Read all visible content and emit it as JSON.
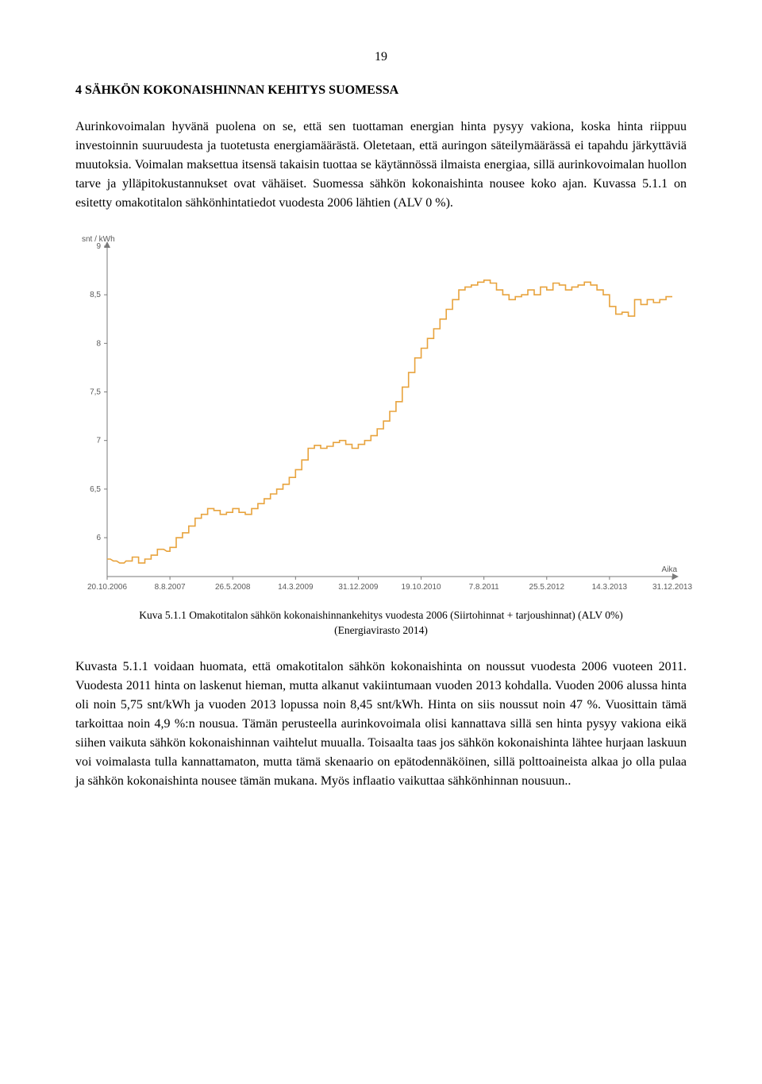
{
  "page_number": "19",
  "heading": "4  SÄHKÖN KOKONAISHINNAN KEHITYS SUOMESSA",
  "paragraph1": "Aurinkovoimalan hyvänä puolena on se, että sen tuottaman energian hinta pysyy vakiona, koska hinta riippuu investoinnin suuruudesta ja tuotetusta energiamäärästä. Oletetaan, että auringon säteilymäärässä ei tapahdu järkyttäviä muutoksia. Voimalan maksettua itsensä takaisin tuottaa se käytännössä ilmaista energiaa, sillä aurinkovoimalan huollon tarve ja ylläpitokustannukset ovat vähäiset. Suomessa sähkön kokonaishinta nousee koko ajan. Kuvassa 5.1.1 on esitetty omakotitalon sähkönhintatiedot vuodesta 2006 lähtien (ALV 0 %).",
  "chart": {
    "type": "line-step",
    "y_label": "snt / kWh",
    "x_label": "Aika",
    "x_ticks": [
      "20.10.2006",
      "8.8.2007",
      "26.5.2008",
      "14.3.2009",
      "31.12.2009",
      "19.10.2010",
      "7.8.2011",
      "25.5.2012",
      "14.3.2013",
      "31.12.2013"
    ],
    "y_ticks": [
      "9",
      "8,5",
      "8",
      "7,5",
      "7",
      "6,5",
      "6"
    ],
    "ylim_min": 5.6,
    "ylim_max": 9.0,
    "line_color": "#e8a33d",
    "line_width": 1.6,
    "axis_color": "#7a7a7a",
    "tick_font_color": "#5a5a5a",
    "tick_font_size": 10,
    "label_font_color": "#5a5a5a",
    "label_font_size": 10,
    "background_color": "#ffffff",
    "series": [
      [
        0.0,
        5.78
      ],
      [
        0.5,
        5.78
      ],
      [
        1.0,
        5.76
      ],
      [
        1.5,
        5.76
      ],
      [
        2.0,
        5.74
      ],
      [
        2.7,
        5.74
      ],
      [
        3.0,
        5.76
      ],
      [
        4.0,
        5.76
      ],
      [
        4.0,
        5.8
      ],
      [
        5.0,
        5.8
      ],
      [
        5.0,
        5.74
      ],
      [
        6.0,
        5.74
      ],
      [
        6.0,
        5.78
      ],
      [
        7.0,
        5.78
      ],
      [
        7.0,
        5.82
      ],
      [
        8.0,
        5.82
      ],
      [
        8.0,
        5.88
      ],
      [
        9.0,
        5.88
      ],
      [
        9.5,
        5.86
      ],
      [
        10.0,
        5.86
      ],
      [
        10.0,
        5.9
      ],
      [
        11.0,
        5.9
      ],
      [
        11.0,
        6.0
      ],
      [
        12.0,
        6.0
      ],
      [
        12.0,
        6.05
      ],
      [
        13.0,
        6.05
      ],
      [
        13.0,
        6.12
      ],
      [
        14.0,
        6.12
      ],
      [
        14.0,
        6.2
      ],
      [
        15.0,
        6.2
      ],
      [
        15.0,
        6.24
      ],
      [
        16.0,
        6.24
      ],
      [
        16.0,
        6.3
      ],
      [
        17.0,
        6.3
      ],
      [
        17.0,
        6.28
      ],
      [
        18.0,
        6.28
      ],
      [
        18.0,
        6.24
      ],
      [
        19.0,
        6.24
      ],
      [
        19.0,
        6.26
      ],
      [
        20.0,
        6.26
      ],
      [
        20.0,
        6.3
      ],
      [
        21.0,
        6.3
      ],
      [
        21.0,
        6.26
      ],
      [
        22.0,
        6.26
      ],
      [
        22.0,
        6.24
      ],
      [
        23.0,
        6.24
      ],
      [
        23.0,
        6.3
      ],
      [
        24.0,
        6.3
      ],
      [
        24.0,
        6.35
      ],
      [
        25.0,
        6.35
      ],
      [
        25.0,
        6.4
      ],
      [
        26.0,
        6.4
      ],
      [
        26.0,
        6.45
      ],
      [
        27.0,
        6.45
      ],
      [
        27.0,
        6.5
      ],
      [
        28.0,
        6.5
      ],
      [
        28.0,
        6.55
      ],
      [
        29.0,
        6.55
      ],
      [
        29.0,
        6.62
      ],
      [
        30.0,
        6.62
      ],
      [
        30.0,
        6.7
      ],
      [
        31.0,
        6.7
      ],
      [
        31.0,
        6.8
      ],
      [
        32.0,
        6.8
      ],
      [
        32.0,
        6.92
      ],
      [
        33.0,
        6.92
      ],
      [
        33.0,
        6.95
      ],
      [
        34.0,
        6.95
      ],
      [
        34.0,
        6.92
      ],
      [
        35.0,
        6.92
      ],
      [
        35.0,
        6.94
      ],
      [
        36.0,
        6.94
      ],
      [
        36.0,
        6.98
      ],
      [
        37.0,
        6.98
      ],
      [
        37.0,
        7.0
      ],
      [
        38.0,
        7.0
      ],
      [
        38.0,
        6.96
      ],
      [
        39.0,
        6.96
      ],
      [
        39.0,
        6.92
      ],
      [
        40.0,
        6.92
      ],
      [
        40.0,
        6.96
      ],
      [
        41.0,
        6.96
      ],
      [
        41.0,
        7.0
      ],
      [
        42.0,
        7.0
      ],
      [
        42.0,
        7.05
      ],
      [
        43.0,
        7.05
      ],
      [
        43.0,
        7.12
      ],
      [
        44.0,
        7.12
      ],
      [
        44.0,
        7.2
      ],
      [
        45.0,
        7.2
      ],
      [
        45.0,
        7.3
      ],
      [
        46.0,
        7.3
      ],
      [
        46.0,
        7.4
      ],
      [
        47.0,
        7.4
      ],
      [
        47.0,
        7.55
      ],
      [
        48.0,
        7.55
      ],
      [
        48.0,
        7.7
      ],
      [
        49.0,
        7.7
      ],
      [
        49.0,
        7.85
      ],
      [
        50.0,
        7.85
      ],
      [
        50.0,
        7.95
      ],
      [
        51.0,
        7.95
      ],
      [
        51.0,
        8.05
      ],
      [
        52.0,
        8.05
      ],
      [
        52.0,
        8.15
      ],
      [
        53.0,
        8.15
      ],
      [
        53.0,
        8.25
      ],
      [
        54.0,
        8.25
      ],
      [
        54.0,
        8.35
      ],
      [
        55.0,
        8.35
      ],
      [
        55.0,
        8.45
      ],
      [
        56.0,
        8.45
      ],
      [
        56.0,
        8.55
      ],
      [
        57.0,
        8.55
      ],
      [
        57.0,
        8.58
      ],
      [
        58.0,
        8.58
      ],
      [
        58.0,
        8.6
      ],
      [
        59.0,
        8.6
      ],
      [
        59.0,
        8.63
      ],
      [
        60.0,
        8.63
      ],
      [
        60.0,
        8.65
      ],
      [
        61.0,
        8.65
      ],
      [
        61.0,
        8.62
      ],
      [
        62.0,
        8.62
      ],
      [
        62.0,
        8.55
      ],
      [
        63.0,
        8.55
      ],
      [
        63.0,
        8.5
      ],
      [
        64.0,
        8.5
      ],
      [
        64.0,
        8.45
      ],
      [
        65.0,
        8.45
      ],
      [
        65.0,
        8.48
      ],
      [
        66.0,
        8.48
      ],
      [
        66.0,
        8.5
      ],
      [
        67.0,
        8.5
      ],
      [
        67.0,
        8.55
      ],
      [
        68.0,
        8.55
      ],
      [
        68.0,
        8.5
      ],
      [
        69.0,
        8.5
      ],
      [
        69.0,
        8.58
      ],
      [
        70.0,
        8.58
      ],
      [
        70.0,
        8.55
      ],
      [
        71.0,
        8.55
      ],
      [
        71.0,
        8.62
      ],
      [
        72.0,
        8.62
      ],
      [
        72.0,
        8.6
      ],
      [
        73.0,
        8.6
      ],
      [
        73.0,
        8.55
      ],
      [
        74.0,
        8.55
      ],
      [
        74.0,
        8.58
      ],
      [
        75.0,
        8.58
      ],
      [
        75.0,
        8.6
      ],
      [
        76.0,
        8.6
      ],
      [
        76.0,
        8.63
      ],
      [
        77.0,
        8.63
      ],
      [
        77.0,
        8.6
      ],
      [
        78.0,
        8.6
      ],
      [
        78.0,
        8.55
      ],
      [
        79.0,
        8.55
      ],
      [
        79.0,
        8.5
      ],
      [
        80.0,
        8.5
      ],
      [
        80.0,
        8.38
      ],
      [
        81.0,
        8.38
      ],
      [
        81.0,
        8.3
      ],
      [
        82.0,
        8.3
      ],
      [
        82.0,
        8.32
      ],
      [
        83.0,
        8.32
      ],
      [
        83.0,
        8.28
      ],
      [
        84.0,
        8.28
      ],
      [
        84.0,
        8.45
      ],
      [
        85.0,
        8.45
      ],
      [
        85.0,
        8.4
      ],
      [
        86.0,
        8.4
      ],
      [
        86.0,
        8.45
      ],
      [
        87.0,
        8.45
      ],
      [
        87.0,
        8.42
      ],
      [
        88.0,
        8.42
      ],
      [
        88.0,
        8.45
      ],
      [
        89.0,
        8.45
      ],
      [
        89.0,
        8.48
      ],
      [
        90.0,
        8.48
      ]
    ]
  },
  "caption_line1": "Kuva 5.1.1 Omakotitalon sähkön kokonaishinnankehitys vuodesta 2006 (Siirtohinnat + tarjoushinnat) (ALV 0%)",
  "caption_line2": "(Energiavirasto 2014)",
  "paragraph2": "Kuvasta 5.1.1 voidaan huomata, että omakotitalon sähkön kokonaishinta on noussut vuodesta 2006 vuoteen 2011. Vuodesta 2011 hinta on laskenut hieman, mutta alkanut vakiintumaan vuoden 2013 kohdalla. Vuoden 2006 alussa hinta oli noin 5,75 snt/kWh ja vuoden 2013 lopussa noin 8,45 snt/kWh. Hinta on siis noussut noin 47 %. Vuosittain tämä tarkoittaa noin 4,9 %:n nousua. Tämän perusteella aurinkovoimala olisi kannattava sillä sen hinta pysyy vakiona eikä siihen vaikuta sähkön kokonaishinnan vaihtelut muualla. Toisaalta taas jos sähkön kokonaishinta lähtee hurjaan laskuun voi voimalasta tulla kannattamaton, mutta tämä skenaario on epätodennäköinen, sillä polttoaineista alkaa jo olla pulaa ja sähkön kokonaishinta nousee tämän mukana. Myös inflaatio vaikuttaa sähkönhinnan nousuun.."
}
